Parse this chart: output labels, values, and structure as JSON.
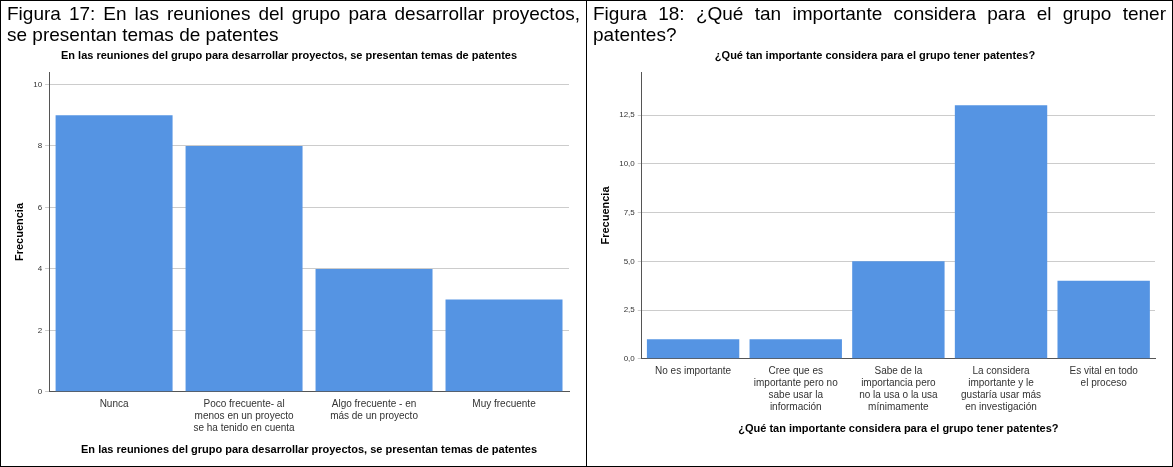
{
  "chart_data": [
    {
      "type": "bar",
      "title": "Figura 17: En las reuniones del grupo para desarrollar proyectos, se presentan temas de patentes",
      "subtitle": "En las reuniones del grupo para desarrollar proyectos, se presentan temas de patentes",
      "xlabel": "En las reuniones del grupo para desarrollar proyectos, se presentan temas de patentes",
      "ylabel": "Frecuencia",
      "categories": [
        "Nunca",
        "Poco frecuente- al menos en un proyecto se ha tenido en cuenta",
        "Algo frecuente - en más de un proyecto",
        "Muy frecuente"
      ],
      "values": [
        9,
        8,
        4,
        3
      ],
      "color": "#5594e3",
      "ylim": [
        0,
        10.4
      ],
      "yticks": [
        0,
        2,
        4,
        6,
        8,
        10
      ],
      "grid": "y",
      "legend": false
    },
    {
      "type": "bar",
      "title": "Figura 18: ¿Qué tan importante considera para el grupo tener patentes?",
      "subtitle": "¿Qué tan importante considera para el grupo tener patentes?",
      "xlabel": "¿Qué tan importante considera para el grupo tener patentes?",
      "ylabel": "Frecuencia",
      "categories": [
        "No es importante",
        "Cree que es importante pero no sabe usar la información",
        "Sabe de la importancia pero no la usa o la usa mínimamente",
        "La considera importante y le gustaría usar más en investigación",
        "Es vital en todo el proceso"
      ],
      "values": [
        1,
        1,
        5,
        13,
        4
      ],
      "color": "#5594e3",
      "ylim": [
        0,
        14.7
      ],
      "yticks": [
        {
          "value": 0,
          "label": "0,0"
        },
        {
          "value": 2.5,
          "label": "2,5"
        },
        {
          "value": 5,
          "label": "5,0"
        },
        {
          "value": 7.5,
          "label": "7,5"
        },
        {
          "value": 10,
          "label": "10,0"
        },
        {
          "value": 12.5,
          "label": "12,5"
        }
      ],
      "grid": "y",
      "legend": false
    }
  ]
}
